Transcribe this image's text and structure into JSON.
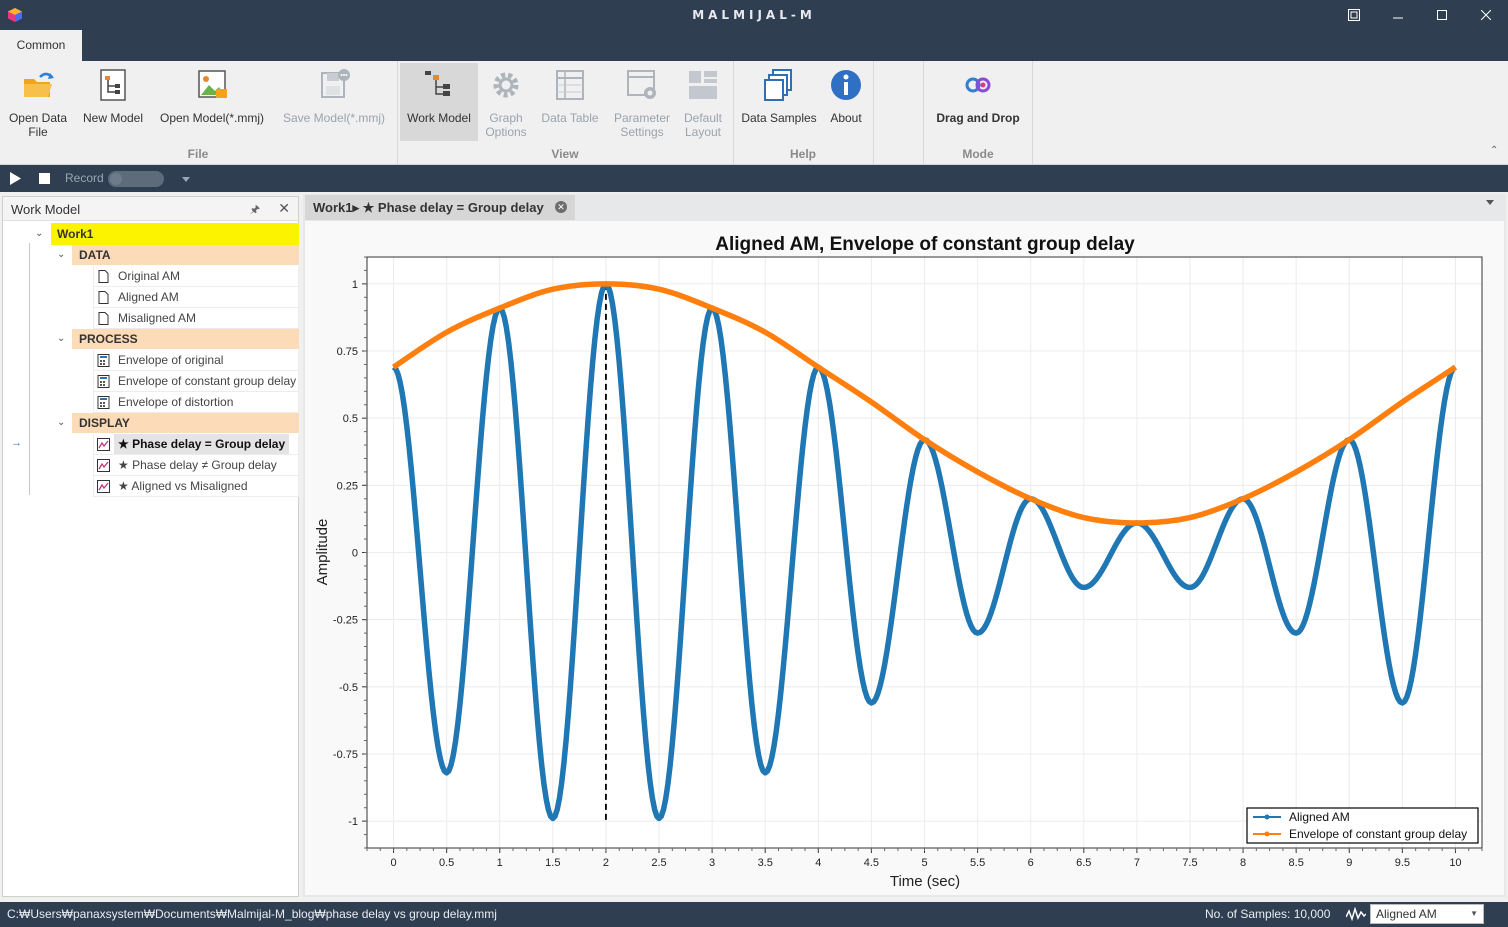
{
  "window": {
    "title": "MALMIJAL-M"
  },
  "tabs": {
    "common": "Common"
  },
  "ribbon": {
    "file": {
      "label": "File",
      "open_data_file": "Open Data\nFile",
      "new_model": "New Model",
      "open_model": "Open Model(*.mmj)",
      "save_model": "Save Model(*.mmj)"
    },
    "view": {
      "label": "View",
      "work_model": "Work Model",
      "graph_options": "Graph\nOptions",
      "data_table": "Data Table",
      "parameter_settings": "Parameter\nSettings",
      "default_layout": "Default\nLayout"
    },
    "help": {
      "label": "Help",
      "data_samples": "Data Samples",
      "about": "About"
    },
    "mode": {
      "label": "Mode",
      "drag_and_drop": "Drag and Drop"
    }
  },
  "recordbar": {
    "record_label": "Record",
    "record_on": false
  },
  "work_model": {
    "title": "Work Model",
    "root": "Work1",
    "categories": [
      {
        "label": "DATA",
        "items": [
          "Original AM",
          "Aligned AM",
          "Misaligned AM"
        ]
      },
      {
        "label": "PROCESS",
        "items": [
          "Envelope of original",
          "Envelope of constant group delay",
          "Envelope of distortion"
        ]
      },
      {
        "label": "DISPLAY",
        "items": [
          "★ Phase delay = Group delay",
          "★ Phase delay ≠ Group delay",
          "★ Aligned vs Misaligned"
        ]
      }
    ],
    "selected": "★ Phase delay = Group delay"
  },
  "doc_tab": {
    "label": "Work1▸ ★ Phase delay = Group delay"
  },
  "chart_data": {
    "type": "line",
    "title": "Aligned AM, Envelope of constant group delay",
    "xlabel": "Time (sec)",
    "ylabel": "Amplitude",
    "xlim": [
      -0.25,
      10.25
    ],
    "ylim": [
      -1.1,
      1.1
    ],
    "xticks": [
      0,
      0.5,
      1,
      1.5,
      2,
      2.5,
      3,
      3.5,
      4,
      4.5,
      5,
      5.5,
      6,
      6.5,
      7,
      7.5,
      8,
      8.5,
      9,
      9.5,
      10
    ],
    "yticks": [
      -1,
      -0.75,
      -0.5,
      -0.25,
      0,
      0.25,
      0.5,
      0.75,
      1
    ],
    "grid": true,
    "legend_position": "bottom-right",
    "vertical_marker_x": 2,
    "series": [
      {
        "name": "Aligned AM",
        "color": "#1f77b4",
        "x": [
          0,
          0.5,
          1,
          1.5,
          2,
          2.5,
          3,
          3.5,
          4,
          4.5,
          5,
          5.5,
          6,
          6.5,
          7,
          7.5,
          8,
          8.5,
          9,
          9.5,
          10
        ],
        "y": [
          0.69,
          -0.82,
          0.91,
          -0.99,
          1.0,
          -0.99,
          0.91,
          -0.82,
          0.69,
          -0.56,
          0.42,
          -0.3,
          0.2,
          -0.13,
          0.11,
          -0.13,
          0.2,
          -0.3,
          0.42,
          -0.56,
          0.69
        ]
      },
      {
        "name": "Envelope of constant group delay",
        "color": "#ff7f0e",
        "x": [
          0,
          0.5,
          1,
          1.5,
          2,
          2.5,
          3,
          3.5,
          4,
          4.5,
          5,
          5.5,
          6,
          6.5,
          7,
          7.5,
          8,
          8.5,
          9,
          9.5,
          10
        ],
        "y": [
          0.69,
          0.82,
          0.91,
          0.98,
          1.0,
          0.98,
          0.91,
          0.82,
          0.69,
          0.56,
          0.42,
          0.3,
          0.2,
          0.13,
          0.11,
          0.13,
          0.2,
          0.3,
          0.42,
          0.56,
          0.69
        ]
      }
    ]
  },
  "status": {
    "path": "C:₩Users₩panaxsystem₩Documents₩Malmijal-M_blog₩phase delay vs group delay.mmj",
    "samples": "No. of Samples: 10,000",
    "selected_series": "Aligned AM"
  }
}
